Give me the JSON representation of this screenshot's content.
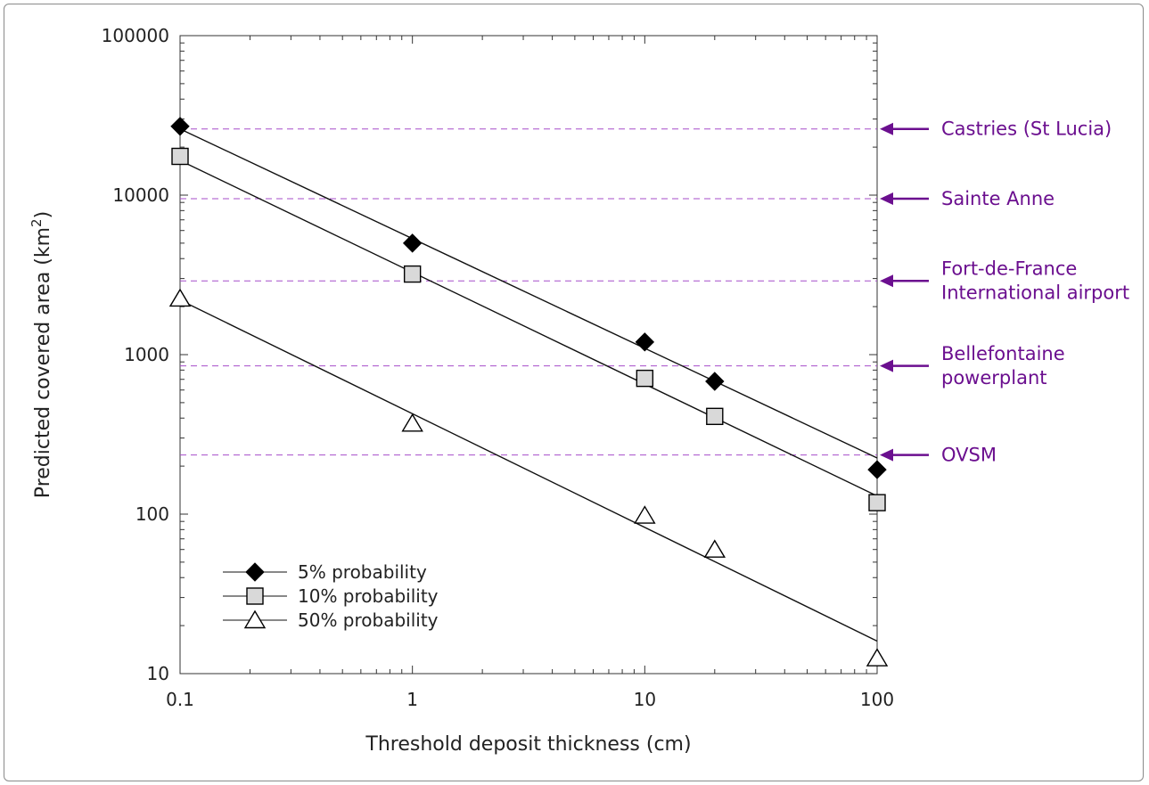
{
  "chart_data": {
    "type": "scatter",
    "xscale": "log",
    "yscale": "log",
    "xlim": [
      0.1,
      100
    ],
    "ylim": [
      10,
      100000
    ],
    "xlabel": "Threshold deposit thickness (cm)",
    "ylabel": "Predicted covered area (km",
    "ylabel_sup": "2",
    "ylabel_close": ")",
    "x_ticks": [
      0.1,
      1,
      10,
      100
    ],
    "x_tick_labels": [
      "0.1",
      "1",
      "10",
      "100"
    ],
    "y_ticks": [
      10,
      100,
      1000,
      10000,
      100000
    ],
    "y_tick_labels": [
      "10",
      "100",
      "1000",
      "10000",
      "100000"
    ],
    "grid": false,
    "legend_position": "bottom-left",
    "series": [
      {
        "name": "5% probability",
        "marker": "diamond",
        "marker_fill": "#000000",
        "x": [
          0.1,
          1,
          10,
          20,
          100
        ],
        "y": [
          27000,
          5000,
          1200,
          680,
          190
        ],
        "fit": {
          "x": [
            0.1,
            100
          ],
          "y": [
            26000,
            225
          ]
        }
      },
      {
        "name": "10% probability",
        "marker": "square",
        "marker_fill": "#d9d9d9",
        "x": [
          0.1,
          1,
          10,
          20,
          100
        ],
        "y": [
          17500,
          3200,
          710,
          410,
          118
        ],
        "fit": {
          "x": [
            0.1,
            100
          ],
          "y": [
            16500,
            130
          ]
        }
      },
      {
        "name": "50% probability",
        "marker": "triangle",
        "marker_fill": "#ffffff",
        "x": [
          0.1,
          1,
          10,
          20,
          100
        ],
        "y": [
          2250,
          370,
          98,
          60,
          12.5
        ],
        "fit": {
          "x": [
            0.1,
            100
          ],
          "y": [
            2200,
            16
          ]
        }
      }
    ],
    "reference_lines": [
      {
        "y": 26000,
        "label_lines": [
          "Castries (St Lucia)"
        ]
      },
      {
        "y": 9500,
        "label_lines": [
          "Sainte Anne"
        ]
      },
      {
        "y": 2900,
        "label_lines": [
          "Fort-de-France",
          "International airport"
        ]
      },
      {
        "y": 850,
        "label_lines": [
          "Bellefontaine",
          "powerplant"
        ]
      },
      {
        "y": 235,
        "label_lines": [
          "OVSM"
        ]
      }
    ],
    "reference_color": "#a64dc9",
    "annotation_color": "#6b0f8f"
  }
}
